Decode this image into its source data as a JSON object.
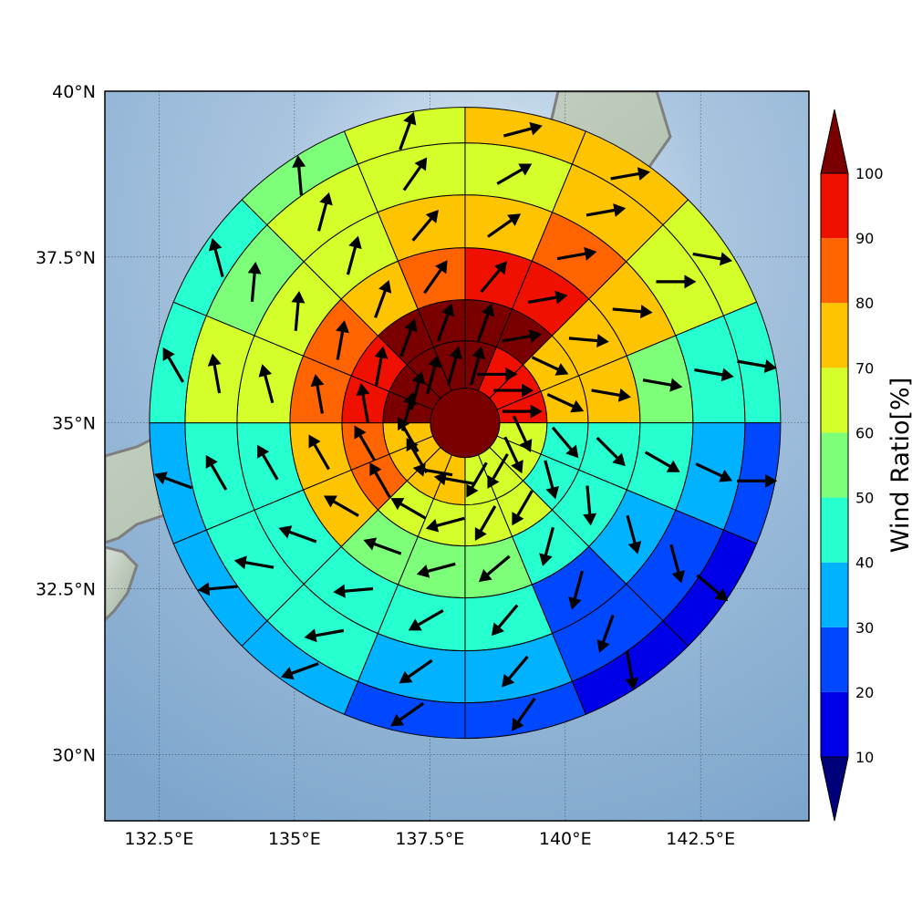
{
  "chart_data": {
    "type": "heatmap",
    "subtype": "polar wind-ratio rose on map",
    "lon_range": [
      131.5,
      144.5
    ],
    "lat_range": [
      29.0,
      40.0
    ],
    "center": {
      "lon": 138.15,
      "lat": 35.0
    },
    "x_ticks": [
      {
        "value": 132.5,
        "label": "132.5°E"
      },
      {
        "value": 135.0,
        "label": "135°E"
      },
      {
        "value": 137.5,
        "label": "137.5°E"
      },
      {
        "value": 140.0,
        "label": "140°E"
      },
      {
        "value": 142.5,
        "label": "142.5°E"
      }
    ],
    "y_ticks": [
      {
        "value": 40.0,
        "label": "40°N"
      },
      {
        "value": 37.5,
        "label": "37.5°N"
      },
      {
        "value": 35.0,
        "label": "35°N"
      },
      {
        "value": 32.5,
        "label": "32.5°N"
      },
      {
        "value": 30.0,
        "label": "30°N"
      }
    ],
    "grid": "dotted",
    "sectors_per_ring": 16,
    "sector_order": "clockwise starting at north (0°)",
    "center_value": 100,
    "rings": [
      {
        "ring": 1,
        "values": [
          100,
          90,
          90,
          90,
          60,
          60,
          60,
          60,
          70,
          70,
          70,
          70,
          100,
          100,
          100,
          100
        ],
        "arrow_bearings": [
          15,
          90,
          90,
          90,
          155,
          155,
          210,
          210,
          280,
          280,
          330,
          330,
          15,
          15,
          15,
          15
        ]
      },
      {
        "ring": 2,
        "values": [
          100,
          100,
          70,
          70,
          40,
          40,
          60,
          60,
          60,
          60,
          80,
          80,
          90,
          90,
          100,
          100
        ],
        "arrow_bearings": [
          20,
          80,
          115,
          115,
          140,
          165,
          210,
          210,
          255,
          300,
          330,
          330,
          350,
          10,
          20,
          20
        ]
      },
      {
        "ring": 3,
        "values": [
          90,
          90,
          70,
          70,
          40,
          40,
          40,
          50,
          50,
          50,
          70,
          70,
          80,
          80,
          70,
          80
        ],
        "arrow_bearings": [
          40,
          80,
          95,
          100,
          135,
          175,
          195,
          230,
          255,
          290,
          300,
          330,
          350,
          10,
          20,
          35
        ]
      },
      {
        "ring": 4,
        "values": [
          70,
          80,
          70,
          50,
          40,
          30,
          20,
          40,
          40,
          40,
          40,
          40,
          60,
          60,
          60,
          70
        ],
        "arrow_bearings": [
          55,
          80,
          95,
          100,
          120,
          165,
          195,
          220,
          240,
          265,
          290,
          330,
          345,
          5,
          15,
          40
        ]
      },
      {
        "ring": 5,
        "values": [
          60,
          70,
          60,
          40,
          30,
          20,
          20,
          30,
          30,
          40,
          40,
          40,
          60,
          50,
          60,
          60
        ],
        "arrow_bearings": [
          60,
          80,
          90,
          100,
          115,
          165,
          200,
          220,
          235,
          260,
          280,
          330,
          350,
          5,
          15,
          35
        ]
      },
      {
        "ring": 6,
        "values": [
          70,
          70,
          60,
          40,
          20,
          10,
          10,
          20,
          20,
          30,
          30,
          30,
          40,
          40,
          50,
          60
        ],
        "arrow_bearings": [
          75,
          80,
          100,
          100,
          90,
          130,
          170,
          215,
          235,
          250,
          265,
          290,
          330,
          345,
          355,
          20
        ]
      }
    ],
    "colorbar": {
      "label": "Wind Ratio[%]",
      "boundaries": [
        10,
        20,
        30,
        40,
        50,
        60,
        70,
        80,
        90,
        100
      ],
      "colors": [
        "#0000e8",
        "#0048ff",
        "#00b2ff",
        "#26ffd0",
        "#7dff7a",
        "#d4ff2a",
        "#ffc400",
        "#ff6400",
        "#f01000"
      ],
      "under_color": "#00007a",
      "over_color": "#7a0000",
      "extend": "both"
    }
  }
}
